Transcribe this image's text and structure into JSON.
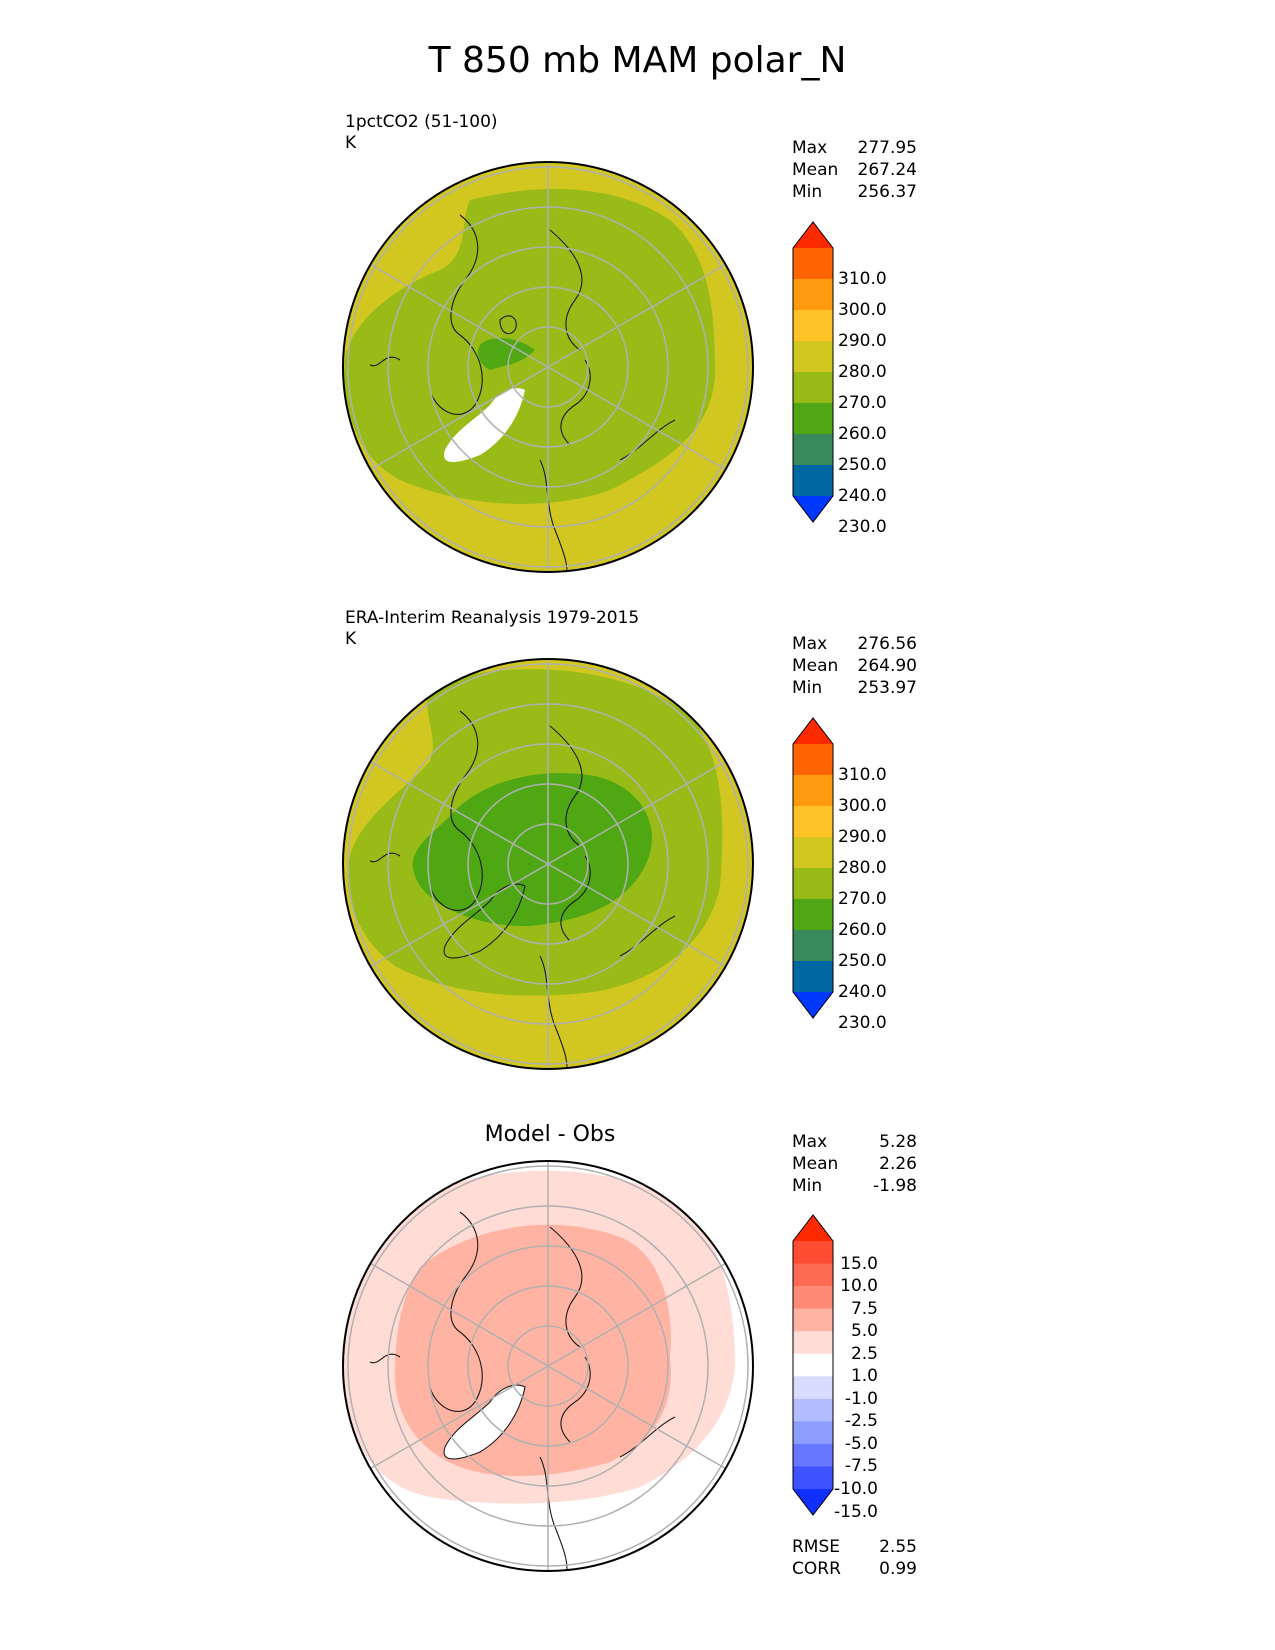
{
  "title": "T 850 mb MAM polar_N",
  "panels": [
    {
      "label": "1pctCO2 (51-100)",
      "units": "K",
      "stats": [
        {
          "label": "Max",
          "value": "277.95"
        },
        {
          "label": "Mean",
          "value": "267.24"
        },
        {
          "label": "Min",
          "value": "256.37"
        }
      ],
      "colorbar": {
        "ticks": [
          "310.0",
          "300.0",
          "290.0",
          "280.0",
          "270.0",
          "260.0",
          "250.0",
          "240.0",
          "230.0"
        ],
        "colors": [
          "#ff2a00",
          "#ff6400",
          "#ff9a10",
          "#fdc226",
          "#d1c720",
          "#99bb17",
          "#4fa813",
          "#388a5d",
          "#0067a3",
          "#0038ff"
        ]
      }
    },
    {
      "label": "ERA-Interim Reanalysis 1979-2015",
      "units": "K",
      "stats": [
        {
          "label": "Max",
          "value": "276.56"
        },
        {
          "label": "Mean",
          "value": "264.90"
        },
        {
          "label": "Min",
          "value": "253.97"
        }
      ],
      "colorbar": {
        "ticks": [
          "310.0",
          "300.0",
          "290.0",
          "280.0",
          "270.0",
          "260.0",
          "250.0",
          "240.0",
          "230.0"
        ],
        "colors": [
          "#ff2a00",
          "#ff6400",
          "#ff9a10",
          "#fdc226",
          "#d1c720",
          "#99bb17",
          "#4fa813",
          "#388a5d",
          "#0067a3",
          "#0038ff"
        ]
      }
    },
    {
      "title": "Model - Obs",
      "stats": [
        {
          "label": "Max",
          "value": "5.28"
        },
        {
          "label": "Mean",
          "value": "2.26"
        },
        {
          "label": "Min",
          "value": "-1.98"
        }
      ],
      "colorbar": {
        "ticks": [
          "15.0",
          "10.0",
          "7.5",
          "5.0",
          "2.5",
          "1.0",
          "-1.0",
          "-2.5",
          "-5.0",
          "-7.5",
          "-10.0",
          "-15.0"
        ],
        "colors": [
          "#ff2a00",
          "#ff4d33",
          "#ff6a55",
          "#ff8a78",
          "#ffb3a3",
          "#ffdcd6",
          "#ffffff",
          "#d8dcff",
          "#b3bcff",
          "#8c9cff",
          "#6676ff",
          "#3f52ff",
          "#1030ff"
        ]
      },
      "metrics": [
        {
          "label": "RMSE",
          "value": "2.55"
        },
        {
          "label": "CORR",
          "value": "0.99"
        }
      ]
    }
  ],
  "map_colors": {
    "warm": "#d1c720",
    "mid": "#99bb17",
    "cold": "#4fa813",
    "diff_light": "#ffdcd6",
    "diff_mid": "#ffb3a3"
  }
}
